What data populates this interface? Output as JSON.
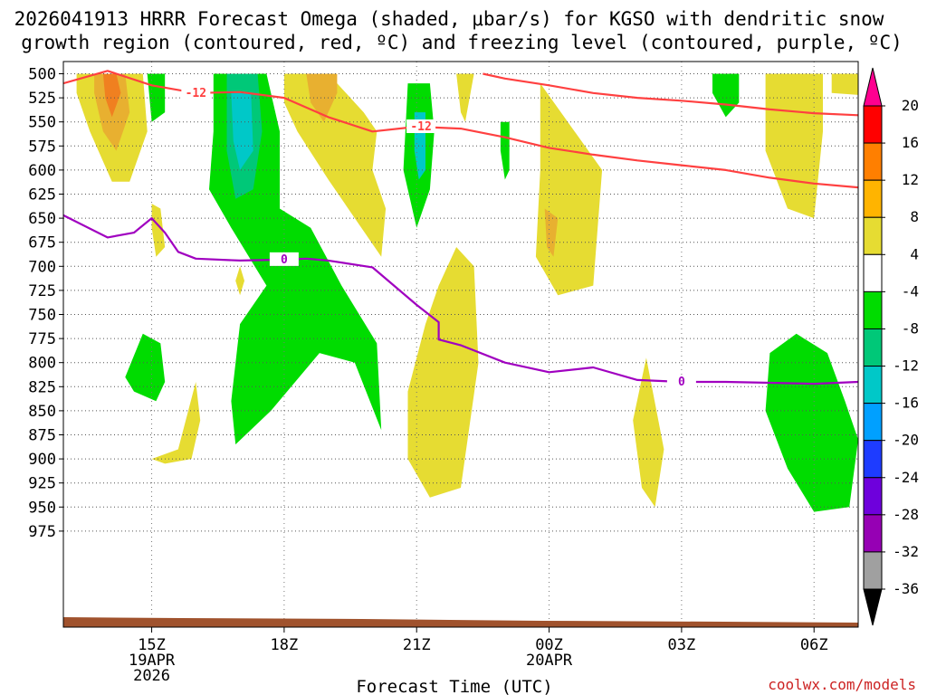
{
  "chart_data": {
    "type": "heatmap",
    "title_line1": "2026041913 HRRR Forecast Omega (shaded, μbar/s) for KGSO with dendritic snow",
    "title_line2": "growth region (contoured, red, ºC) and freezing level (contoured, purple, ºC)",
    "xlabel": "Forecast Time (UTC)",
    "credit": "coolwx.com/models",
    "x_range_hours": [
      13.0,
      31.0
    ],
    "pressure_levels": [
      500,
      525,
      550,
      575,
      600,
      625,
      650,
      675,
      700,
      725,
      750,
      775,
      800,
      825,
      850,
      875,
      900,
      925,
      950,
      975
    ],
    "y_tick_labels": [
      "500",
      "525",
      "550",
      "575",
      "600",
      "625",
      "650",
      "675",
      "700",
      "725",
      "750",
      "775",
      "800",
      "825",
      "850",
      "875",
      "900",
      "925",
      "950",
      "975"
    ],
    "x_ticks": [
      {
        "hour": 15,
        "lines": [
          "15Z",
          "19APR",
          "2026"
        ]
      },
      {
        "hour": 18,
        "lines": [
          "18Z"
        ]
      },
      {
        "hour": 21,
        "lines": [
          "21Z"
        ]
      },
      {
        "hour": 24,
        "lines": [
          "00Z",
          "20APR"
        ]
      },
      {
        "hour": 27,
        "lines": [
          "03Z"
        ]
      },
      {
        "hour": 30,
        "lines": [
          "06Z"
        ]
      }
    ],
    "colorbar": {
      "levels": [
        "20",
        "16",
        "12",
        "8",
        "4",
        "-4",
        "-8",
        "-12",
        "-16",
        "-20",
        "-24",
        "-28",
        "-32",
        "-36"
      ],
      "colors": [
        "#ff0000",
        "#ff7f00",
        "#ffb400",
        "#e6dc32",
        "#ffffff",
        "#00dc00",
        "#00c878",
        "#00c8c8",
        "#00a0ff",
        "#1e3cff",
        "#6e00dc",
        "#9600b4",
        "#a0a0a0"
      ]
    },
    "omega_regions": [
      {
        "value_range": "4 to 8",
        "color": "#e6dc32",
        "points": [
          [
            13.3,
            500
          ],
          [
            14.8,
            500
          ],
          [
            14.9,
            560
          ],
          [
            14.5,
            612
          ],
          [
            14.1,
            612
          ],
          [
            13.6,
            560
          ],
          [
            13.3,
            520
          ]
        ]
      },
      {
        "value_range": "8 to 12",
        "color": "#e8b030",
        "points": [
          [
            13.7,
            500
          ],
          [
            14.4,
            500
          ],
          [
            14.5,
            540
          ],
          [
            14.2,
            580
          ],
          [
            13.9,
            560
          ],
          [
            13.7,
            520
          ]
        ]
      },
      {
        "value_range": "12 to 16",
        "color": "#f08020",
        "points": [
          [
            13.9,
            500
          ],
          [
            14.2,
            500
          ],
          [
            14.3,
            520
          ],
          [
            14.1,
            545
          ],
          [
            13.95,
            525
          ]
        ]
      },
      {
        "value_range": "-4 to -8",
        "color": "#00dc00",
        "points": [
          [
            14.9,
            500
          ],
          [
            15.3,
            500
          ],
          [
            15.3,
            540
          ],
          [
            15.0,
            550
          ]
        ]
      },
      {
        "value_range": "4 to 8",
        "color": "#e6dc32",
        "points": [
          [
            18.0,
            500
          ],
          [
            19.0,
            500
          ],
          [
            19.8,
            540
          ],
          [
            20.1,
            560
          ],
          [
            20.0,
            600
          ],
          [
            20.3,
            640
          ],
          [
            20.2,
            690
          ],
          [
            19.6,
            650
          ],
          [
            19.0,
            610
          ],
          [
            18.3,
            560
          ],
          [
            18.0,
            530
          ]
        ]
      },
      {
        "value_range": "8 to 12",
        "color": "#e8b030",
        "points": [
          [
            18.5,
            500
          ],
          [
            19.2,
            500
          ],
          [
            19.2,
            520
          ],
          [
            18.9,
            550
          ],
          [
            18.6,
            530
          ]
        ]
      },
      {
        "value_range": "-4 to -8",
        "color": "#00dc00",
        "points": [
          [
            16.4,
            500
          ],
          [
            17.6,
            500
          ],
          [
            17.9,
            560
          ],
          [
            17.9,
            640
          ],
          [
            18.6,
            660
          ],
          [
            19.3,
            720
          ],
          [
            20.1,
            780
          ],
          [
            20.2,
            870
          ],
          [
            19.6,
            800
          ],
          [
            18.8,
            790
          ],
          [
            17.7,
            850
          ],
          [
            16.9,
            885
          ],
          [
            16.8,
            840
          ],
          [
            17.0,
            760
          ],
          [
            17.6,
            720
          ],
          [
            16.8,
            660
          ],
          [
            16.3,
            620
          ],
          [
            16.4,
            560
          ]
        ]
      },
      {
        "value_range": "-8 to -12",
        "color": "#00c878",
        "points": [
          [
            16.7,
            500
          ],
          [
            17.4,
            500
          ],
          [
            17.5,
            560
          ],
          [
            17.3,
            620
          ],
          [
            16.9,
            630
          ],
          [
            16.7,
            580
          ]
        ]
      },
      {
        "value_range": "-12 to -16",
        "color": "#00c8c8",
        "points": [
          [
            16.8,
            520
          ],
          [
            17.25,
            520
          ],
          [
            17.3,
            580
          ],
          [
            17.0,
            600
          ],
          [
            16.85,
            570
          ]
        ]
      },
      {
        "value_range": "-4 to -8",
        "color": "#00dc00",
        "points": [
          [
            20.8,
            510
          ],
          [
            21.3,
            510
          ],
          [
            21.4,
            560
          ],
          [
            21.3,
            620
          ],
          [
            21.0,
            660
          ],
          [
            20.7,
            600
          ]
        ]
      },
      {
        "value_range": "-8 to -12",
        "color": "#00c8c8",
        "points": [
          [
            20.95,
            540
          ],
          [
            21.2,
            540
          ],
          [
            21.2,
            600
          ],
          [
            21.05,
            610
          ],
          [
            20.95,
            580
          ]
        ]
      },
      {
        "value_range": "-4 to -8",
        "color": "#00dc00",
        "points": [
          [
            22.9,
            550
          ],
          [
            23.1,
            550
          ],
          [
            23.1,
            600
          ],
          [
            23.0,
            610
          ],
          [
            22.9,
            580
          ]
        ]
      },
      {
        "value_range": "4 to 8",
        "color": "#e6dc32",
        "points": [
          [
            23.8,
            510
          ],
          [
            25.2,
            600
          ],
          [
            25.0,
            720
          ],
          [
            24.2,
            730
          ],
          [
            23.7,
            690
          ],
          [
            23.8,
            600
          ]
        ]
      },
      {
        "value_range": "8 to 12",
        "color": "#e8b030",
        "points": [
          [
            23.9,
            640
          ],
          [
            24.2,
            650
          ],
          [
            24.1,
            690
          ],
          [
            23.95,
            680
          ]
        ]
      },
      {
        "value_range": "4 to 8",
        "color": "#e6dc32",
        "points": [
          [
            21.9,
            680
          ],
          [
            22.3,
            700
          ],
          [
            22.4,
            800
          ],
          [
            22.0,
            930
          ],
          [
            21.3,
            940
          ],
          [
            20.8,
            900
          ],
          [
            20.8,
            830
          ],
          [
            21.2,
            760
          ],
          [
            21.5,
            720
          ]
        ]
      },
      {
        "value_range": "4 to 8",
        "color": "#e6dc32",
        "points": [
          [
            21.9,
            500
          ],
          [
            22.3,
            500
          ],
          [
            22.1,
            550
          ],
          [
            22.0,
            540
          ]
        ]
      },
      {
        "value_range": "-4 to -8",
        "color": "#00dc00",
        "points": [
          [
            27.7,
            500
          ],
          [
            28.3,
            500
          ],
          [
            28.3,
            530
          ],
          [
            28.0,
            545
          ],
          [
            27.7,
            520
          ]
        ]
      },
      {
        "value_range": "4 to 8",
        "color": "#e6dc32",
        "points": [
          [
            28.9,
            500
          ],
          [
            30.2,
            500
          ],
          [
            30.2,
            560
          ],
          [
            30.0,
            650
          ],
          [
            29.4,
            640
          ],
          [
            28.9,
            580
          ]
        ]
      },
      {
        "value_range": "4 to 8",
        "color": "#e6dc32",
        "points": [
          [
            30.4,
            500
          ],
          [
            31.0,
            500
          ],
          [
            31.0,
            522
          ],
          [
            30.4,
            520
          ]
        ]
      },
      {
        "value_range": "-4 to -8",
        "color": "#00dc00",
        "points": [
          [
            14.8,
            770
          ],
          [
            15.2,
            780
          ],
          [
            15.3,
            820
          ],
          [
            15.1,
            840
          ],
          [
            14.6,
            830
          ],
          [
            14.4,
            815
          ]
        ]
      },
      {
        "value_range": "4 to 8",
        "color": "#e6dc32",
        "points": [
          [
            15.0,
            635
          ],
          [
            15.2,
            640
          ],
          [
            15.3,
            680
          ],
          [
            15.1,
            690
          ],
          [
            15.0,
            660
          ]
        ]
      },
      {
        "value_range": "4 to 8",
        "color": "#e6dc32",
        "points": [
          [
            17.0,
            700
          ],
          [
            17.1,
            715
          ],
          [
            17.0,
            730
          ],
          [
            16.9,
            715
          ]
        ]
      },
      {
        "value_range": "4 to 8",
        "color": "#e6dc32",
        "points": [
          [
            15.0,
            900
          ],
          [
            15.6,
            890
          ],
          [
            16.0,
            820
          ],
          [
            16.1,
            860
          ],
          [
            15.9,
            900
          ],
          [
            15.3,
            905
          ]
        ]
      },
      {
        "value_range": "4 to 8",
        "color": "#e6dc32",
        "points": [
          [
            26.2,
            795
          ],
          [
            26.6,
            890
          ],
          [
            26.4,
            950
          ],
          [
            26.1,
            930
          ],
          [
            25.9,
            860
          ]
        ]
      },
      {
        "value_range": "-4 to -8",
        "color": "#00dc00",
        "points": [
          [
            29.0,
            790
          ],
          [
            29.6,
            770
          ],
          [
            30.3,
            790
          ],
          [
            30.7,
            840
          ],
          [
            31.0,
            880
          ],
          [
            30.8,
            950
          ],
          [
            30.0,
            955
          ],
          [
            29.4,
            910
          ],
          [
            28.9,
            850
          ]
        ]
      }
    ],
    "dendritic_contours": [
      {
        "label": "-12",
        "color": "#ff4040",
        "points": [
          [
            13.0,
            510
          ],
          [
            14.0,
            497
          ],
          [
            15.0,
            512
          ],
          [
            16.0,
            520
          ],
          [
            17.0,
            519
          ],
          [
            18.0,
            525
          ],
          [
            19.0,
            545
          ],
          [
            20.0,
            560
          ],
          [
            21.0,
            555
          ],
          [
            22.0,
            557
          ],
          [
            23.0,
            566
          ],
          [
            24.0,
            577
          ],
          [
            25.0,
            584
          ],
          [
            26.0,
            590
          ],
          [
            27.0,
            595
          ],
          [
            28.0,
            600
          ],
          [
            29.0,
            608
          ],
          [
            30.0,
            614
          ],
          [
            31.0,
            618
          ]
        ]
      },
      {
        "label": "-12",
        "color": "#ff4040",
        "points": [
          [
            22.5,
            500
          ],
          [
            23.0,
            505
          ],
          [
            24.0,
            512
          ],
          [
            25.0,
            520
          ],
          [
            26.0,
            525
          ],
          [
            27.0,
            528
          ],
          [
            28.0,
            532
          ],
          [
            29.0,
            537
          ],
          [
            30.0,
            541
          ],
          [
            31.0,
            543
          ]
        ]
      }
    ],
    "freezing_level": {
      "label": "0",
      "color": "#a000c0",
      "points": [
        [
          13.0,
          647
        ],
        [
          14.0,
          670
        ],
        [
          14.6,
          665
        ],
        [
          15.0,
          650
        ],
        [
          15.3,
          665
        ],
        [
          15.6,
          685
        ],
        [
          16.0,
          692
        ],
        [
          17.0,
          694
        ],
        [
          18.0,
          693
        ],
        [
          18.5,
          692
        ],
        [
          19.0,
          694
        ],
        [
          20.0,
          701
        ],
        [
          21.0,
          740
        ],
        [
          21.5,
          758
        ],
        [
          21.5,
          776
        ],
        [
          22.0,
          782
        ],
        [
          23.0,
          800
        ],
        [
          24.0,
          810
        ],
        [
          25.0,
          805
        ],
        [
          26.0,
          818
        ],
        [
          27.0,
          820
        ],
        [
          28.0,
          820
        ],
        [
          29.0,
          821
        ],
        [
          30.0,
          822
        ],
        [
          31.0,
          820
        ]
      ]
    },
    "annotations": {
      "dgz_label_1": "-12",
      "dgz_label_2": "-12",
      "frz_label_1": "0",
      "frz_label_2": "0"
    }
  }
}
